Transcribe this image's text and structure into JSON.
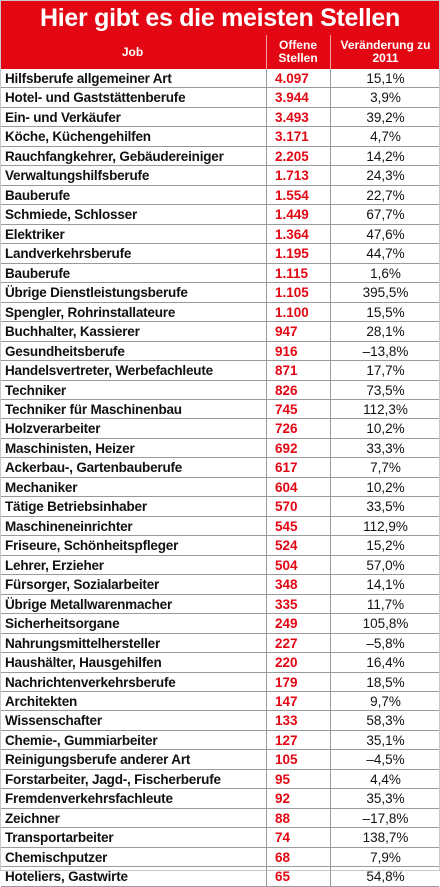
{
  "title": "Hier gibt es die meisten Stellen",
  "columns": {
    "job": "Job",
    "open": "Offene Stellen",
    "change": "Veränderung zu 2011"
  },
  "chart_data": {
    "type": "table",
    "title": "Hier gibt es die meisten Stellen",
    "columns": [
      "Job",
      "Offene Stellen",
      "Veränderung zu 2011"
    ],
    "rows": [
      {
        "job": "Hilfsberufe allgemeiner Art",
        "open": "4.097",
        "change": "15,1%"
      },
      {
        "job": "Hotel- und Gaststättenberufe",
        "open": "3.944",
        "change": "3,9%"
      },
      {
        "job": "Ein- und Verkäufer",
        "open": "3.493",
        "change": "39,2%"
      },
      {
        "job": "Köche, Küchengehilfen",
        "open": "3.171",
        "change": "4,7%"
      },
      {
        "job": "Rauchfangkehrer, Gebäudereiniger",
        "open": "2.205",
        "change": "14,2%"
      },
      {
        "job": "Verwaltungshilfsberufe",
        "open": "1.713",
        "change": "24,3%"
      },
      {
        "job": "Bauberufe",
        "open": "1.554",
        "change": "22,7%"
      },
      {
        "job": "Schmiede, Schlosser",
        "open": "1.449",
        "change": "67,7%"
      },
      {
        "job": "Elektriker",
        "open": "1.364",
        "change": "47,6%"
      },
      {
        "job": "Landverkehrsberufe",
        "open": "1.195",
        "change": "44,7%"
      },
      {
        "job": "Bauberufe",
        "open": "1.115",
        "change": "1,6%"
      },
      {
        "job": "Übrige Dienstleistungsberufe",
        "open": "1.105",
        "change": "395,5%"
      },
      {
        "job": "Spengler, Rohrinstallateure",
        "open": "1.100",
        "change": "15,5%"
      },
      {
        "job": "Buchhalter, Kassierer",
        "open": "947",
        "change": "28,1%"
      },
      {
        "job": "Gesundheitsberufe",
        "open": "916",
        "change": "–13,8%"
      },
      {
        "job": "Handelsvertreter, Werbefachleute",
        "open": "871",
        "change": "17,7%"
      },
      {
        "job": "Techniker",
        "open": "826",
        "change": "73,5%"
      },
      {
        "job": "Techniker für Maschinenbau",
        "open": "745",
        "change": "112,3%"
      },
      {
        "job": "Holzverarbeiter",
        "open": "726",
        "change": "10,2%"
      },
      {
        "job": "Maschinisten, Heizer",
        "open": "692",
        "change": "33,3%"
      },
      {
        "job": "Ackerbau-, Gartenbauberufe",
        "open": "617",
        "change": "7,7%"
      },
      {
        "job": "Mechaniker",
        "open": "604",
        "change": "10,2%"
      },
      {
        "job": "Tätige Betriebsinhaber",
        "open": "570",
        "change": "33,5%"
      },
      {
        "job": "Maschineneinrichter",
        "open": "545",
        "change": "112,9%"
      },
      {
        "job": "Friseure, Schönheitspfleger",
        "open": "524",
        "change": "15,2%"
      },
      {
        "job": "Lehrer, Erzieher",
        "open": "504",
        "change": "57,0%"
      },
      {
        "job": "Fürsorger, Sozialarbeiter",
        "open": "348",
        "change": "14,1%"
      },
      {
        "job": "Übrige Metallwarenmacher",
        "open": "335",
        "change": "11,7%"
      },
      {
        "job": "Sicherheitsorgane",
        "open": "249",
        "change": "105,8%"
      },
      {
        "job": "Nahrungsmittelhersteller",
        "open": "227",
        "change": "–5,8%"
      },
      {
        "job": "Haushälter, Hausgehilfen",
        "open": "220",
        "change": "16,4%"
      },
      {
        "job": "Nachrichtenverkehrsberufe",
        "open": "179",
        "change": "18,5%"
      },
      {
        "job": "Architekten",
        "open": "147",
        "change": "9,7%"
      },
      {
        "job": "Wissenschafter",
        "open": "133",
        "change": "58,3%"
      },
      {
        "job": "Chemie-, Gummiarbeiter",
        "open": "127",
        "change": "35,1%"
      },
      {
        "job": "Reinigungsberufe anderer Art",
        "open": "105",
        "change": "–4,5%"
      },
      {
        "job": "Forstarbeiter, Jagd-, Fischerberufe",
        "open": "95",
        "change": "4,4%"
      },
      {
        "job": "Fremdenverkehrsfachleute",
        "open": "92",
        "change": "35,3%"
      },
      {
        "job": "Zeichner",
        "open": "88",
        "change": "–17,8%"
      },
      {
        "job": "Transportarbeiter",
        "open": "74",
        "change": "138,7%"
      },
      {
        "job": "Chemischputzer",
        "open": "68",
        "change": "7,9%"
      },
      {
        "job": "Hoteliers, Gastwirte",
        "open": "65",
        "change": "54,8%"
      }
    ]
  },
  "colors": {
    "accent": "#e30613",
    "text": "#111111",
    "grid": "#9a9a9a"
  }
}
